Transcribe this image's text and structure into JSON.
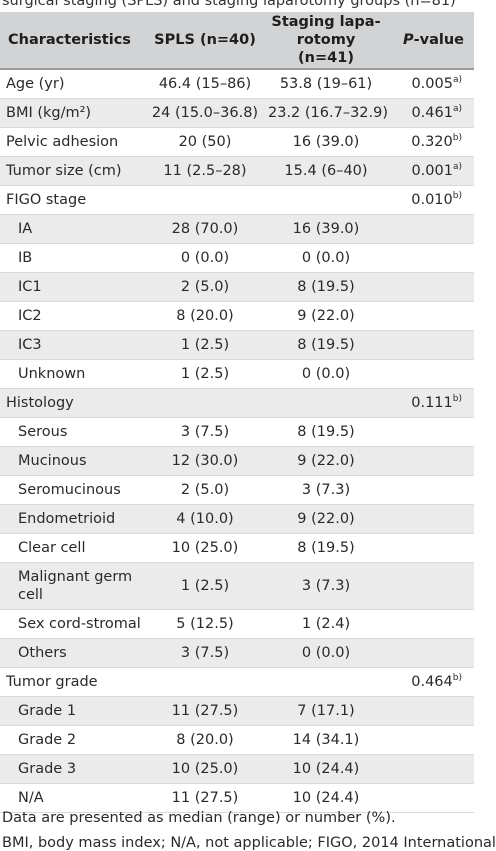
{
  "caption_partial": "surgical staging (SPLS) and staging laparotomy groups (n=81)",
  "headers": {
    "characteristics": "Characteristics",
    "spls": "SPLS (n=40)",
    "lap_line1": "Staging lapa-",
    "lap_line2": "rotomy (n=41)",
    "p_italic": "P",
    "p_rest": "-value"
  },
  "rows": [
    {
      "label": "Age (yr)",
      "spls": "46.4 (15–86)",
      "lap": "53.8 (19–61)",
      "p": "0.005",
      "sup": "a)",
      "indent": false,
      "shade": false
    },
    {
      "label": "BMI (kg/m²)",
      "spls": "24 (15.0–36.8)",
      "lap": "23.2 (16.7–32.9)",
      "p": "0.461",
      "sup": "a)",
      "indent": false,
      "shade": true
    },
    {
      "label": "Pelvic adhesion",
      "spls": "20 (50)",
      "lap": "16 (39.0)",
      "p": "0.320",
      "sup": "b)",
      "indent": false,
      "shade": false
    },
    {
      "label": "Tumor size (cm)",
      "spls": "11 (2.5–28)",
      "lap": "15.4 (6–40)",
      "p": "0.001",
      "sup": "a)",
      "indent": false,
      "shade": true
    },
    {
      "label": "FIGO stage",
      "spls": "",
      "lap": "",
      "p": "0.010",
      "sup": "b)",
      "indent": false,
      "shade": false
    },
    {
      "label": "IA",
      "spls": "28 (70.0)",
      "lap": "16 (39.0)",
      "p": "",
      "sup": "",
      "indent": true,
      "shade": true
    },
    {
      "label": "IB",
      "spls": "0 (0.0)",
      "lap": "0 (0.0)",
      "p": "",
      "sup": "",
      "indent": true,
      "shade": false
    },
    {
      "label": "IC1",
      "spls": "2 (5.0)",
      "lap": "8 (19.5)",
      "p": "",
      "sup": "",
      "indent": true,
      "shade": true
    },
    {
      "label": "IC2",
      "spls": "8 (20.0)",
      "lap": "9 (22.0)",
      "p": "",
      "sup": "",
      "indent": true,
      "shade": false
    },
    {
      "label": "IC3",
      "spls": "1 (2.5)",
      "lap": "8 (19.5)",
      "p": "",
      "sup": "",
      "indent": true,
      "shade": true
    },
    {
      "label": "Unknown",
      "spls": "1 (2.5)",
      "lap": "0 (0.0)",
      "p": "",
      "sup": "",
      "indent": true,
      "shade": false
    },
    {
      "label": "Histology",
      "spls": "",
      "lap": "",
      "p": "0.111",
      "sup": "b)",
      "indent": false,
      "shade": true
    },
    {
      "label": "Serous",
      "spls": "3 (7.5)",
      "lap": "8 (19.5)",
      "p": "",
      "sup": "",
      "indent": true,
      "shade": false
    },
    {
      "label": "Mucinous",
      "spls": "12 (30.0)",
      "lap": "9 (22.0)",
      "p": "",
      "sup": "",
      "indent": true,
      "shade": true
    },
    {
      "label": "Seromucinous",
      "spls": "2 (5.0)",
      "lap": "3 (7.3)",
      "p": "",
      "sup": "",
      "indent": true,
      "shade": false
    },
    {
      "label": "Endometrioid",
      "spls": "4 (10.0)",
      "lap": "9 (22.0)",
      "p": "",
      "sup": "",
      "indent": true,
      "shade": true
    },
    {
      "label": "Clear cell",
      "spls": "10 (25.0)",
      "lap": "8 (19.5)",
      "p": "",
      "sup": "",
      "indent": true,
      "shade": false
    },
    {
      "label": "Malignant germ cell",
      "spls": "1 (2.5)",
      "lap": "3 (7.3)",
      "p": "",
      "sup": "",
      "indent": true,
      "shade": true,
      "tall": true
    },
    {
      "label": "Sex cord-stromal",
      "spls": "5 (12.5)",
      "lap": "1 (2.4)",
      "p": "",
      "sup": "",
      "indent": true,
      "shade": false
    },
    {
      "label": "Others",
      "spls": "3 (7.5)",
      "lap": "0 (0.0)",
      "p": "",
      "sup": "",
      "indent": true,
      "shade": true
    },
    {
      "label": "Tumor grade",
      "spls": "",
      "lap": "",
      "p": "0.464",
      "sup": "b)",
      "indent": false,
      "shade": false
    },
    {
      "label": "Grade 1",
      "spls": "11 (27.5)",
      "lap": "7 (17.1)",
      "p": "",
      "sup": "",
      "indent": true,
      "shade": true
    },
    {
      "label": "Grade 2",
      "spls": "8 (20.0)",
      "lap": "14 (34.1)",
      "p": "",
      "sup": "",
      "indent": true,
      "shade": false
    },
    {
      "label": "Grade 3",
      "spls": "10 (25.0)",
      "lap": "10 (24.4)",
      "p": "",
      "sup": "",
      "indent": true,
      "shade": true
    },
    {
      "label": "N/A",
      "spls": "11 (27.5)",
      "lap": "10 (24.4)",
      "p": "",
      "sup": "",
      "indent": true,
      "shade": false
    }
  ],
  "footnote_1": "Data are presented as median (range) or number (%).",
  "footnote_2": "BMI, body mass index; N/A, not applicable; FIGO, 2014 International"
}
